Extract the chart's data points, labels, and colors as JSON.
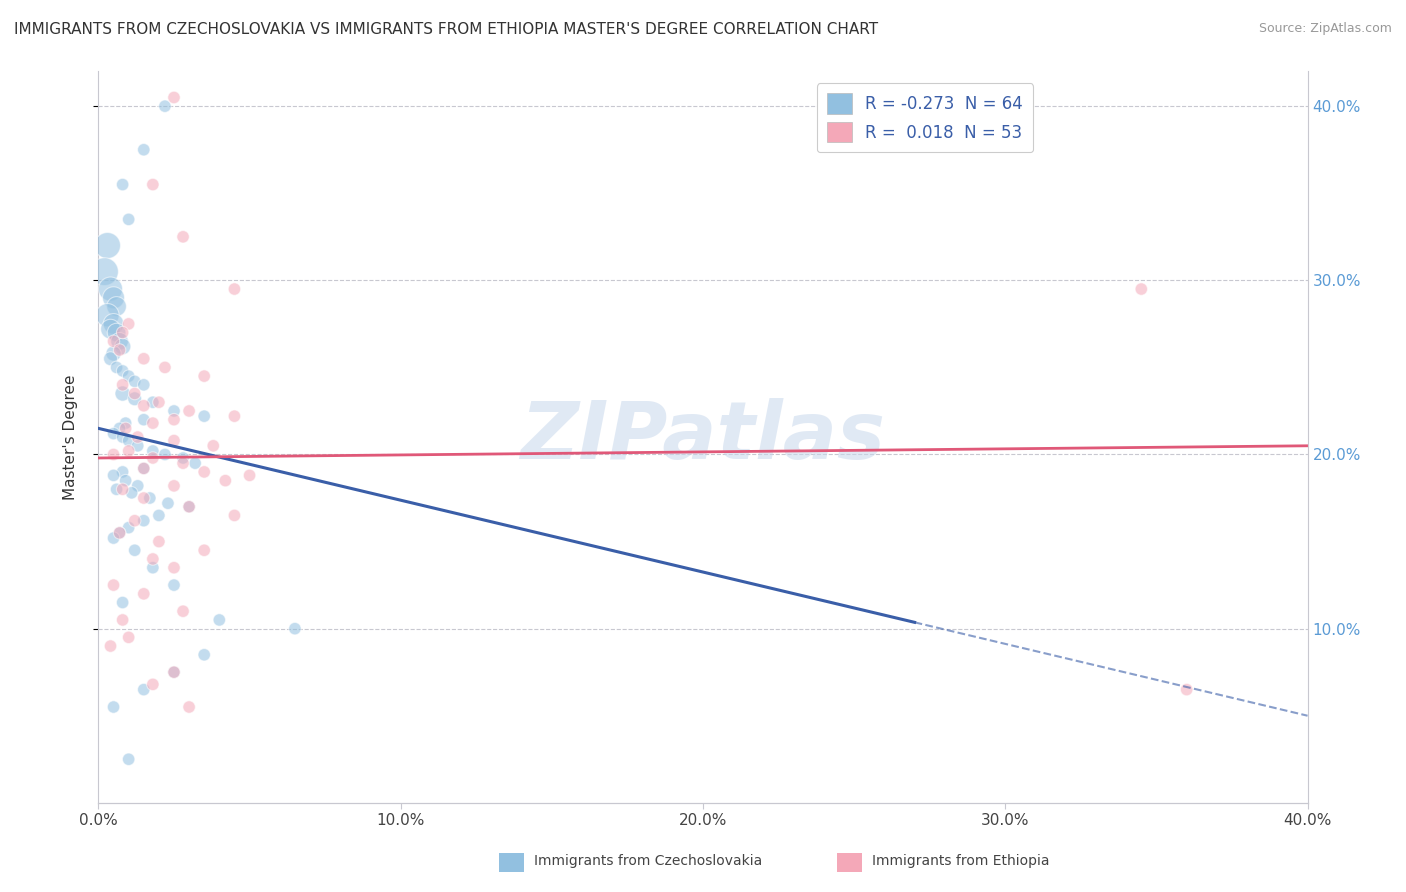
{
  "title": "IMMIGRANTS FROM CZECHOSLOVAKIA VS IMMIGRANTS FROM ETHIOPIA MASTER'S DEGREE CORRELATION CHART",
  "source": "Source: ZipAtlas.com",
  "ylabel": "Master's Degree",
  "xlim": [
    0.0,
    40.0
  ],
  "ylim": [
    0.0,
    42.0
  ],
  "x_tick_values": [
    0.0,
    10.0,
    20.0,
    30.0,
    40.0
  ],
  "x_tick_labels": [
    "0.0%",
    "10.0%",
    "20.0%",
    "30.0%",
    "40.0%"
  ],
  "y_tick_values": [
    10.0,
    20.0,
    30.0,
    40.0
  ],
  "y_tick_labels": [
    "10.0%",
    "20.0%",
    "30.0%",
    "40.0%"
  ],
  "legend_r1": "R = -0.273  N = 64",
  "legend_r2": "R =  0.018  N = 53",
  "blue_r_val": "-0.273",
  "blue_n_val": "64",
  "pink_r_val": "0.018",
  "pink_n_val": "53",
  "blue_scatter_x": [
    2.2,
    1.5,
    0.8,
    1.0,
    0.3,
    0.2,
    0.4,
    0.5,
    0.6,
    0.3,
    0.5,
    0.4,
    0.6,
    0.7,
    0.8,
    0.5,
    0.4,
    0.6,
    0.8,
    1.0,
    1.2,
    1.5,
    0.8,
    1.2,
    1.8,
    2.5,
    3.5,
    1.5,
    0.9,
    0.7,
    0.5,
    0.8,
    1.0,
    1.3,
    1.8,
    2.2,
    2.8,
    3.2,
    1.5,
    0.8,
    0.5,
    0.9,
    1.3,
    0.6,
    1.1,
    1.7,
    2.3,
    3.0,
    2.0,
    1.5,
    1.0,
    0.7,
    0.5,
    1.2,
    1.8,
    2.5,
    0.8,
    4.0,
    6.5,
    3.5,
    2.5,
    1.5,
    0.5,
    1.0
  ],
  "blue_scatter_y": [
    40.0,
    37.5,
    35.5,
    33.5,
    32.0,
    30.5,
    29.5,
    29.0,
    28.5,
    28.0,
    27.5,
    27.2,
    27.0,
    26.5,
    26.2,
    25.8,
    25.5,
    25.0,
    24.8,
    24.5,
    24.2,
    24.0,
    23.5,
    23.2,
    23.0,
    22.5,
    22.2,
    22.0,
    21.8,
    21.5,
    21.2,
    21.0,
    20.8,
    20.5,
    20.2,
    20.0,
    19.8,
    19.5,
    19.2,
    19.0,
    18.8,
    18.5,
    18.2,
    18.0,
    17.8,
    17.5,
    17.2,
    17.0,
    16.5,
    16.2,
    15.8,
    15.5,
    15.2,
    14.5,
    13.5,
    12.5,
    11.5,
    10.5,
    10.0,
    8.5,
    7.5,
    6.5,
    5.5,
    2.5
  ],
  "blue_scatter_sizes": [
    80,
    80,
    80,
    80,
    350,
    400,
    300,
    250,
    200,
    280,
    220,
    200,
    180,
    160,
    140,
    120,
    100,
    80,
    80,
    80,
    80,
    80,
    120,
    100,
    80,
    80,
    80,
    80,
    80,
    80,
    80,
    80,
    80,
    80,
    80,
    80,
    80,
    80,
    80,
    80,
    80,
    80,
    80,
    80,
    80,
    80,
    80,
    80,
    80,
    80,
    80,
    80,
    80,
    80,
    80,
    80,
    80,
    80,
    80,
    80,
    80,
    80,
    80,
    80
  ],
  "pink_scatter_x": [
    2.5,
    1.8,
    2.8,
    4.5,
    1.0,
    0.8,
    0.5,
    0.7,
    1.5,
    2.2,
    3.5,
    0.8,
    1.2,
    2.0,
    1.5,
    3.0,
    4.5,
    2.5,
    1.8,
    0.9,
    1.3,
    2.5,
    3.8,
    1.0,
    0.5,
    1.8,
    2.8,
    1.5,
    3.5,
    5.0,
    4.2,
    2.5,
    0.8,
    1.5,
    3.0,
    4.5,
    1.2,
    0.7,
    2.0,
    3.5,
    1.8,
    2.5,
    0.5,
    1.5,
    2.8,
    0.8,
    1.0,
    34.5,
    36.0,
    0.4,
    2.5,
    1.8,
    3.0
  ],
  "pink_scatter_y": [
    40.5,
    35.5,
    32.5,
    29.5,
    27.5,
    27.0,
    26.5,
    26.0,
    25.5,
    25.0,
    24.5,
    24.0,
    23.5,
    23.0,
    22.8,
    22.5,
    22.2,
    22.0,
    21.8,
    21.5,
    21.0,
    20.8,
    20.5,
    20.2,
    20.0,
    19.8,
    19.5,
    19.2,
    19.0,
    18.8,
    18.5,
    18.2,
    18.0,
    17.5,
    17.0,
    16.5,
    16.2,
    15.5,
    15.0,
    14.5,
    14.0,
    13.5,
    12.5,
    12.0,
    11.0,
    10.5,
    9.5,
    29.5,
    6.5,
    9.0,
    7.5,
    6.8,
    5.5
  ],
  "pink_scatter_sizes": [
    80,
    80,
    80,
    80,
    80,
    80,
    80,
    80,
    80,
    80,
    80,
    80,
    80,
    80,
    80,
    80,
    80,
    80,
    80,
    80,
    80,
    80,
    80,
    80,
    80,
    80,
    80,
    80,
    80,
    80,
    80,
    80,
    80,
    80,
    80,
    80,
    80,
    80,
    80,
    80,
    80,
    80,
    80,
    80,
    80,
    80,
    80,
    80,
    80,
    80,
    80,
    80,
    80
  ],
  "blue_line_x0": 0.0,
  "blue_line_y0": 21.5,
  "blue_line_x1": 40.0,
  "blue_line_y1": 5.0,
  "blue_solid_end_x": 27.0,
  "pink_line_x0": 0.0,
  "pink_line_y0": 19.8,
  "pink_line_x1": 40.0,
  "pink_line_y1": 20.5,
  "blue_color": "#92c0e0",
  "pink_color": "#f4a8b8",
  "blue_line_color": "#3a5ea8",
  "pink_line_color": "#e05878",
  "watermark": "ZIPatlas",
  "grid_color": "#c8c8d0",
  "background_color": "#ffffff",
  "title_fontsize": 11,
  "axis_label_fontsize": 11,
  "tick_fontsize": 11,
  "legend_fontsize": 12,
  "tick_color_y": "#5b9bd5",
  "tick_color_x": "#444444"
}
